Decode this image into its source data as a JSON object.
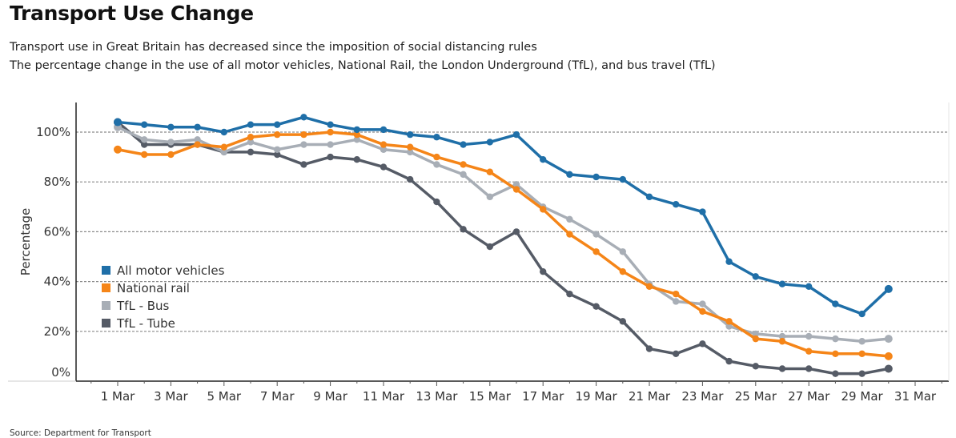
{
  "page": {
    "title": "Transport Use Change",
    "subtitle_line1": "Transport use in Great Britain has decreased since the imposition of social distancing rules",
    "subtitle_line2": "The percentage change in the use of all motor vehicles, National Rail, the London Underground (TfL), and bus travel (TfL)",
    "source": "Source: Department for Transport"
  },
  "chart_data": {
    "type": "line",
    "title": "Transport Use Change",
    "xlabel": "",
    "ylabel": "Percentage",
    "x": [
      "1 Mar",
      "2 Mar",
      "3 Mar",
      "4 Mar",
      "5 Mar",
      "6 Mar",
      "7 Mar",
      "8 Mar",
      "9 Mar",
      "10 Mar",
      "11 Mar",
      "12 Mar",
      "13 Mar",
      "14 Mar",
      "15 Mar",
      "16 Mar",
      "17 Mar",
      "18 Mar",
      "19 Mar",
      "20 Mar",
      "21 Mar",
      "22 Mar",
      "23 Mar",
      "24 Mar",
      "25 Mar",
      "26 Mar",
      "27 Mar",
      "28 Mar",
      "29 Mar",
      "30 Mar"
    ],
    "x_tick_labels": [
      "1 Mar",
      "3 Mar",
      "5 Mar",
      "7 Mar",
      "9 Mar",
      "11 Mar",
      "13 Mar",
      "15 Mar",
      "17 Mar",
      "19 Mar",
      "21 Mar",
      "23 Mar",
      "25 Mar",
      "27 Mar",
      "29 Mar",
      "31 Mar"
    ],
    "y_tick_labels": [
      "0%",
      "20%",
      "40%",
      "60%",
      "80%",
      "100%"
    ],
    "y_ticks": [
      0,
      20,
      40,
      60,
      80,
      100
    ],
    "ylim": [
      0,
      110
    ],
    "grid": true,
    "legend_position": "middle-left",
    "series": [
      {
        "name": "All motor vehicles",
        "color": "#1F6FA8",
        "values": [
          104,
          103,
          102,
          102,
          100,
          103,
          103,
          106,
          103,
          101,
          101,
          99,
          98,
          95,
          96,
          99,
          89,
          83,
          82,
          81,
          74,
          71,
          68,
          48,
          42,
          39,
          38,
          31,
          27,
          37
        ]
      },
      {
        "name": "National rail",
        "color": "#F58518",
        "values": [
          93,
          91,
          91,
          95,
          94,
          98,
          99,
          99,
          100,
          99,
          95,
          94,
          90,
          87,
          84,
          77,
          69,
          59,
          52,
          44,
          38,
          35,
          28,
          24,
          17,
          16,
          12,
          11,
          11,
          10
        ]
      },
      {
        "name": "TfL - Bus",
        "color": "#A8AEB6",
        "values": [
          102,
          97,
          96,
          97,
          92,
          96,
          93,
          95,
          95,
          97,
          93,
          92,
          87,
          83,
          74,
          79,
          70,
          65,
          59,
          52,
          39,
          32,
          31,
          22,
          19,
          18,
          18,
          17,
          16,
          17
        ]
      },
      {
        "name": "TfL - Tube",
        "color": "#555B66",
        "values": [
          104,
          95,
          95,
          95,
          92,
          92,
          91,
          87,
          90,
          89,
          86,
          81,
          72,
          61,
          54,
          60,
          44,
          35,
          30,
          24,
          13,
          11,
          15,
          8,
          6,
          5,
          5,
          3,
          3,
          5
        ]
      }
    ]
  }
}
